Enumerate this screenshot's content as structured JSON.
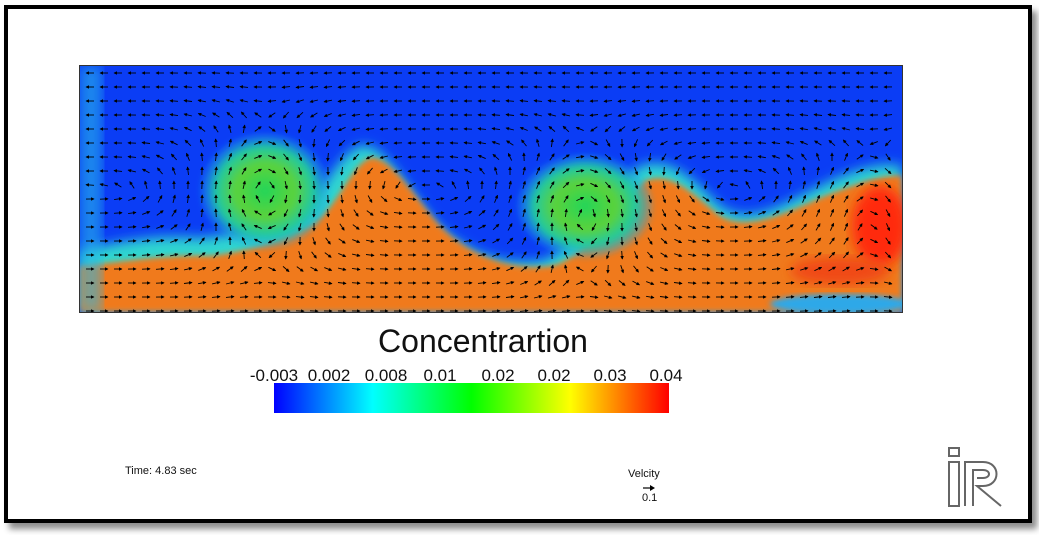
{
  "colorbar": {
    "title": "Concentrartion",
    "tick_labels": [
      "-0.003",
      "0.002",
      "0.008",
      "0.01",
      "0.02",
      "0.02",
      "0.03",
      "0.04"
    ],
    "colors": [
      "#0000ff",
      "#00ffff",
      "#00ff00",
      "#ffff00",
      "#ff0000"
    ]
  },
  "time_label": "Time: 4.83 sec",
  "velocity_legend": {
    "title": "Velcity",
    "scale": "0.1",
    "icon": "arrow-right-icon"
  },
  "logo": {
    "icon": "iric-logo-icon"
  },
  "field_colors": {
    "low": "#0b3df5",
    "mid": "#3bd75c",
    "high": "#f07a1e",
    "peak": "#ff2a10"
  }
}
